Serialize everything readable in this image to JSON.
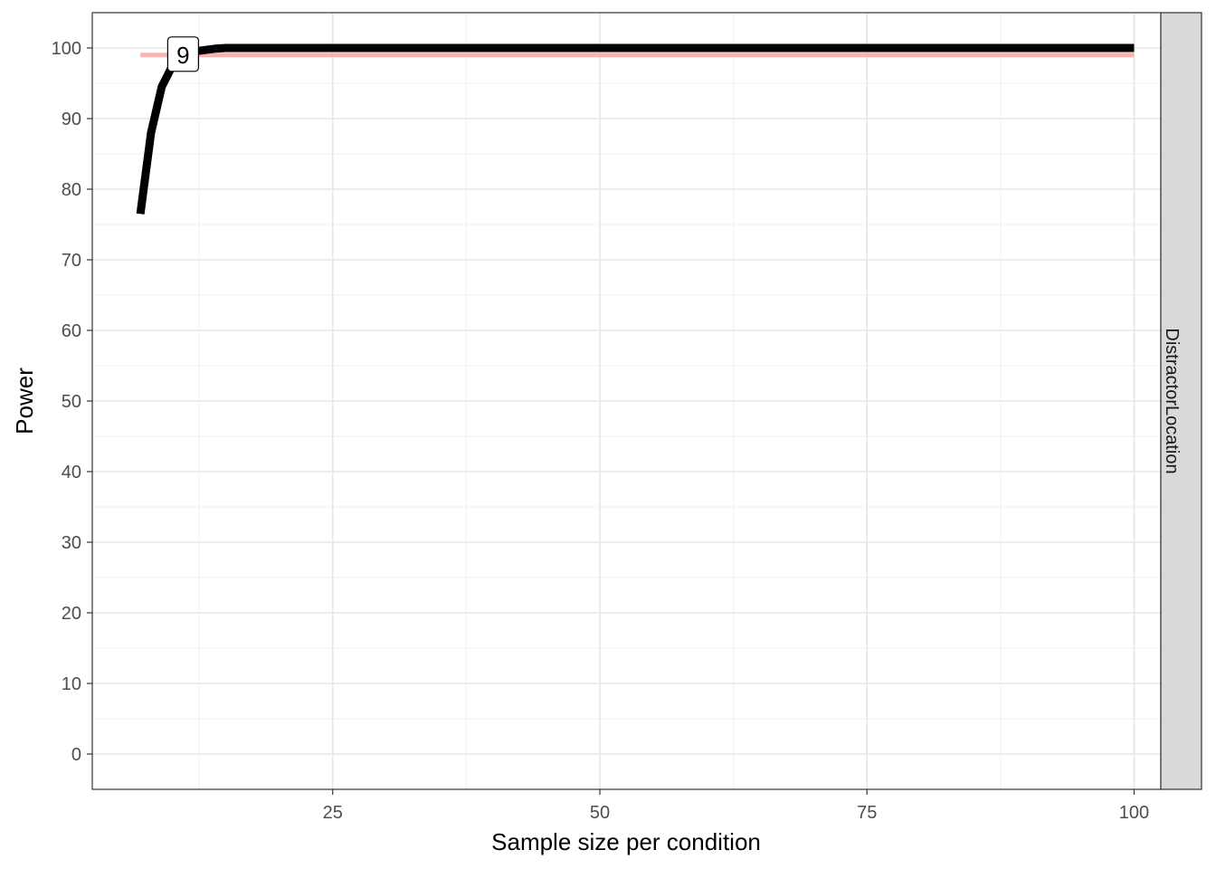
{
  "chart_data": {
    "type": "line",
    "title": "",
    "xlabel": "Sample size per condition",
    "ylabel": "Power",
    "facet_label": "DistractorLocation",
    "xlim": [
      2.5,
      102.5
    ],
    "ylim": [
      -5,
      105
    ],
    "x_ticks": [
      25,
      50,
      75,
      100
    ],
    "y_ticks": [
      0,
      10,
      20,
      30,
      40,
      50,
      60,
      70,
      80,
      90,
      100
    ],
    "grid": true,
    "legend": "none",
    "series": [
      {
        "color": "#000000",
        "x": [
          7,
          8,
          9,
          10,
          11,
          12,
          13,
          14,
          15,
          20,
          30,
          40,
          50,
          60,
          70,
          80,
          90,
          100
        ],
        "values": [
          76.5,
          88,
          94.5,
          97.5,
          99,
          99.5,
          99.7,
          99.9,
          100,
          100,
          100,
          100,
          100,
          100,
          100,
          100,
          100,
          100
        ]
      }
    ],
    "reference_line": {
      "y": 99,
      "color": "#f8b4b4"
    },
    "annotations": [
      {
        "x": 11,
        "y": 99,
        "text": "9"
      }
    ]
  }
}
